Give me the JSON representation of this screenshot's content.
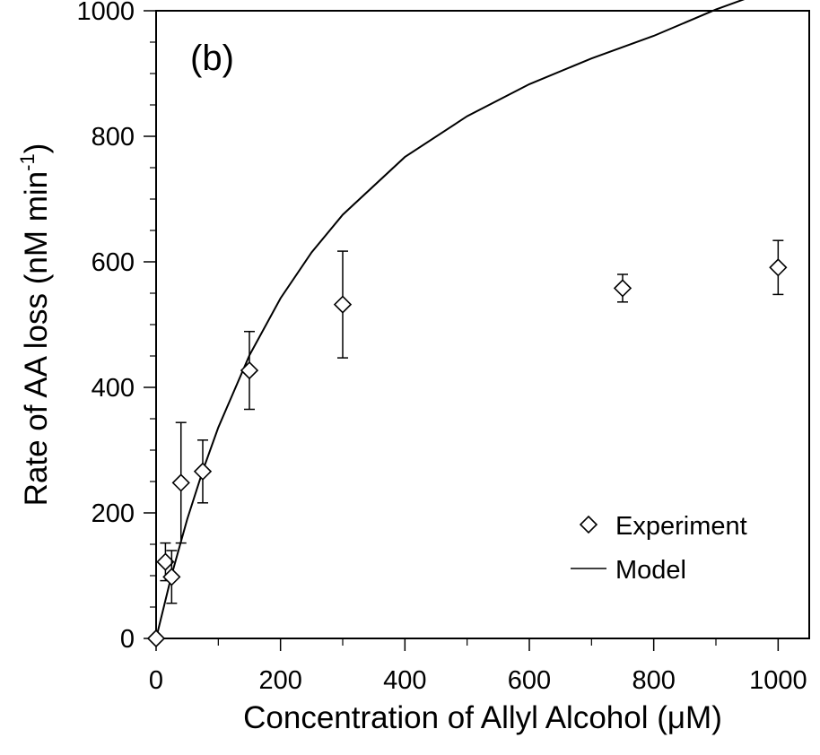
{
  "chart_data": {
    "type": "scatter",
    "panel_label": "(b)",
    "xlabel": "Concentration of Allyl Alcohol (",
    "xlabel_unit": "μM",
    "xlabel_close": ")",
    "ylabel": "Rate of AA loss (nM min",
    "ylabel_sup": "-1",
    "ylabel_close": ")",
    "xlim": [
      0,
      1050
    ],
    "ylim": [
      0,
      1000
    ],
    "x_ticks": [
      0,
      200,
      400,
      600,
      800,
      1000
    ],
    "y_ticks": [
      0,
      200,
      400,
      600,
      800,
      1000
    ],
    "x_tick_labels": [
      "0",
      "200",
      "400",
      "600",
      "800",
      "1000"
    ],
    "y_tick_labels": [
      "0",
      "200",
      "400",
      "600",
      "800",
      "1000"
    ],
    "grid": false,
    "legend": {
      "position": "bottom-right"
    },
    "series": [
      {
        "name": "Experiment",
        "marker": "diamond-open",
        "points": [
          {
            "x": 0,
            "y": 0,
            "err": 0
          },
          {
            "x": 15,
            "y": 122,
            "err": 30
          },
          {
            "x": 25,
            "y": 98,
            "err": 42
          },
          {
            "x": 40,
            "y": 248,
            "err": 96
          },
          {
            "x": 75,
            "y": 266,
            "err": 50
          },
          {
            "x": 150,
            "y": 427,
            "err": 62
          },
          {
            "x": 300,
            "y": 532,
            "err": 85
          },
          {
            "x": 750,
            "y": 558,
            "err": 22
          },
          {
            "x": 1000,
            "y": 591,
            "err": 43
          }
        ]
      },
      {
        "name": "Model",
        "line": true,
        "x": [
          0,
          25,
          50,
          75,
          100,
          150,
          200,
          250,
          300,
          400,
          500,
          600,
          700,
          800,
          900,
          1000
        ],
        "values": [
          0,
          101,
          190,
          267,
          336,
          451,
          542,
          615,
          675,
          767,
          832,
          883,
          924,
          960,
          1002,
          1038
        ]
      }
    ]
  }
}
